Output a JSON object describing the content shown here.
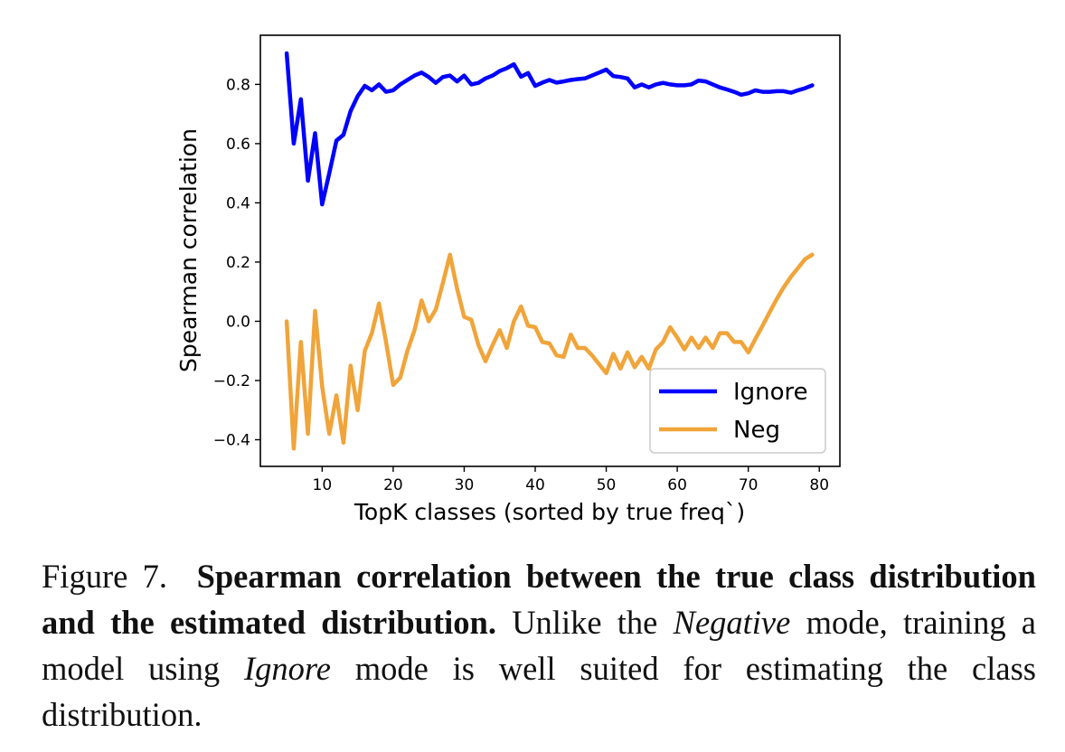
{
  "chart_data": {
    "type": "line",
    "title": "",
    "xlabel": "TopK classes (sorted by true freq`)",
    "ylabel": "Spearman correlation",
    "xlim": [
      1.3,
      82.9
    ],
    "ylim": [
      -0.49,
      0.966
    ],
    "xticks": [
      10,
      20,
      30,
      40,
      50,
      60,
      70,
      80
    ],
    "yticks": [
      -0.4,
      -0.2,
      0.0,
      0.2,
      0.4,
      0.6,
      0.8
    ],
    "ytick_labels": [
      "−0.4",
      "−0.2",
      "0.0",
      "0.2",
      "0.4",
      "0.6",
      "0.8"
    ],
    "grid": false,
    "legend_position": "lower-right",
    "series": [
      {
        "name": "Ignore",
        "color": "#0000ff",
        "x": [
          5,
          6,
          7,
          8,
          9,
          10,
          11,
          12,
          13,
          14,
          15,
          16,
          17,
          18,
          19,
          20,
          21,
          22,
          23,
          24,
          25,
          26,
          27,
          28,
          29,
          30,
          31,
          32,
          33,
          34,
          35,
          36,
          37,
          38,
          39,
          40,
          41,
          42,
          43,
          44,
          45,
          46,
          47,
          48,
          49,
          50,
          51,
          52,
          53,
          54,
          55,
          56,
          57,
          58,
          59,
          60,
          61,
          62,
          63,
          64,
          65,
          66,
          67,
          68,
          69,
          70,
          71,
          72,
          73,
          74,
          75,
          76,
          77,
          78,
          79
        ],
        "y": [
          0.905,
          0.6,
          0.75,
          0.475,
          0.635,
          0.395,
          0.5,
          0.61,
          0.63,
          0.71,
          0.76,
          0.795,
          0.78,
          0.8,
          0.775,
          0.78,
          0.8,
          0.815,
          0.83,
          0.84,
          0.825,
          0.805,
          0.825,
          0.83,
          0.81,
          0.83,
          0.8,
          0.805,
          0.82,
          0.83,
          0.845,
          0.855,
          0.868,
          0.826,
          0.838,
          0.795,
          0.806,
          0.815,
          0.806,
          0.81,
          0.815,
          0.818,
          0.82,
          0.83,
          0.84,
          0.85,
          0.828,
          0.825,
          0.82,
          0.79,
          0.8,
          0.79,
          0.8,
          0.805,
          0.8,
          0.797,
          0.797,
          0.8,
          0.813,
          0.81,
          0.8,
          0.79,
          0.783,
          0.775,
          0.765,
          0.77,
          0.78,
          0.775,
          0.775,
          0.777,
          0.777,
          0.772,
          0.78,
          0.787,
          0.797
        ]
      },
      {
        "name": "Neg",
        "color": "#f0a43a",
        "x": [
          5,
          6,
          7,
          8,
          9,
          10,
          11,
          12,
          13,
          14,
          15,
          16,
          17,
          18,
          19,
          20,
          21,
          22,
          23,
          24,
          25,
          26,
          27,
          28,
          29,
          30,
          31,
          32,
          33,
          34,
          35,
          36,
          37,
          38,
          39,
          40,
          41,
          42,
          43,
          44,
          45,
          46,
          47,
          48,
          49,
          50,
          51,
          52,
          53,
          54,
          55,
          56,
          57,
          58,
          59,
          60,
          61,
          62,
          63,
          64,
          65,
          66,
          67,
          68,
          69,
          70,
          71,
          72,
          73,
          74,
          75,
          76,
          77,
          78,
          79
        ],
        "y": [
          0.0,
          -0.43,
          -0.07,
          -0.38,
          0.035,
          -0.22,
          -0.38,
          -0.25,
          -0.41,
          -0.15,
          -0.3,
          -0.1,
          -0.04,
          0.06,
          -0.07,
          -0.215,
          -0.19,
          -0.1,
          -0.03,
          0.07,
          0.0,
          0.04,
          0.13,
          0.225,
          0.11,
          0.015,
          0.005,
          -0.08,
          -0.135,
          -0.08,
          -0.03,
          -0.09,
          0.0,
          0.05,
          -0.015,
          -0.02,
          -0.07,
          -0.075,
          -0.115,
          -0.12,
          -0.045,
          -0.09,
          -0.09,
          -0.115,
          -0.145,
          -0.175,
          -0.11,
          -0.16,
          -0.105,
          -0.155,
          -0.12,
          -0.16,
          -0.095,
          -0.07,
          -0.02,
          -0.055,
          -0.095,
          -0.055,
          -0.09,
          -0.055,
          -0.09,
          -0.04,
          -0.04,
          -0.07,
          -0.07,
          -0.105,
          -0.06,
          -0.015,
          0.03,
          0.075,
          0.115,
          0.15,
          0.18,
          0.21,
          0.225
        ]
      }
    ]
  },
  "caption": {
    "figure_label": "Figure 7.",
    "title_bold": "Spearman correlation between the true class distribution and the estimated distribution.",
    "text_before_negative": " Unlike the ",
    "negative_italic": "Negative",
    "text_mid": " mode, training a model using ",
    "ignore_italic": "Ignore",
    "text_end": " mode is well suited for estimating the class distribution."
  }
}
